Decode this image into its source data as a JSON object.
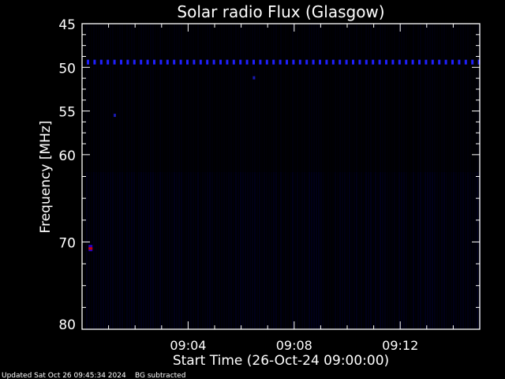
{
  "chart_data": {
    "type": "heatmap",
    "title": "Solar radio Flux (Glasgow)",
    "xlabel": "Start Time (26-Oct-24 09:00:00)",
    "ylabel": "Frequency [MHz]",
    "x_range": [
      "09:00",
      "09:15"
    ],
    "x_ticks": [
      "09:04",
      "09:08",
      "09:12"
    ],
    "y_range": [
      45,
      80
    ],
    "y_inverted": true,
    "y_ticks": [
      45,
      50,
      55,
      60,
      70,
      80
    ],
    "colormap": "black-blue-red",
    "grid": false,
    "features": [
      {
        "label": "persistent interference band",
        "frequency_mhz": 49.4,
        "time_range": [
          "09:00",
          "09:15"
        ]
      },
      {
        "label": "bright spot",
        "frequency_mhz": 70.7,
        "time": "09:00:20"
      },
      {
        "label": "spot",
        "frequency_mhz": 51.2,
        "time": "09:06:30"
      },
      {
        "label": "spot",
        "frequency_mhz": 55.5,
        "time": "09:01:15"
      }
    ]
  },
  "footer": {
    "updated": "Updated Sat Oct 26 09:45:34 2024",
    "bg_note": "BG subtracted"
  },
  "colors": {
    "background": "#000000",
    "axis": "#ffffff",
    "signal": "#2020ff",
    "peak": "#cc0000"
  }
}
